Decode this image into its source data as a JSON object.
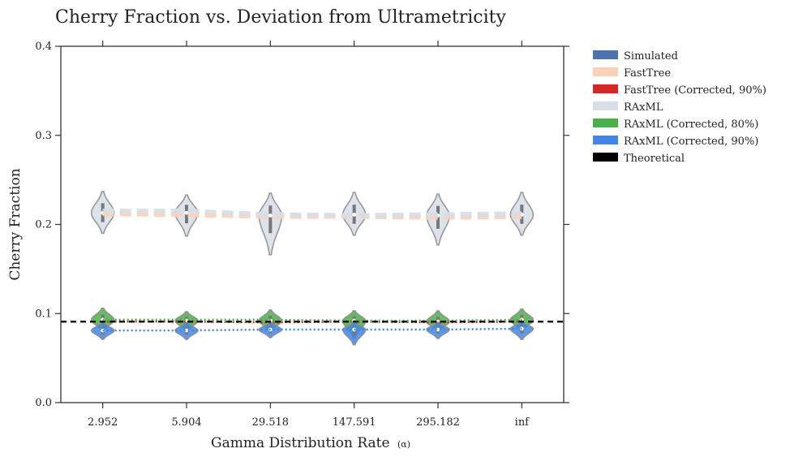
{
  "chart_data": {
    "type": "violin",
    "title": "Cherry Fraction vs. Deviation from Ultrametricity",
    "xlabel": "Gamma Distribution Rate",
    "xlabel_symbol": "(α)",
    "ylabel": "Cherry Fraction",
    "categories": [
      "2.952",
      "5.904",
      "29.518",
      "147.591",
      "295.182",
      "inf"
    ],
    "ylim": [
      0.0,
      0.4
    ],
    "yticks": [
      0.0,
      0.1,
      0.2,
      0.3,
      0.4
    ],
    "ytick_labels": [
      "0.0",
      "0.1",
      "0.2",
      "0.3",
      "0.4"
    ],
    "grid": false,
    "legend_position": "outside-right-top",
    "series": [
      {
        "name": "Simulated",
        "color": "#4c72b0",
        "linestyle": "none",
        "values": []
      },
      {
        "name": "FastTree",
        "color": "#fdd0b8",
        "linestyle": "dashed-thick",
        "values": [
          0.212,
          0.211,
          0.209,
          0.209,
          0.208,
          0.209
        ]
      },
      {
        "name": "FastTree (Corrected, 90%)",
        "color": "#d62728",
        "linestyle": "dotted",
        "values": [
          0.091,
          0.091,
          0.09,
          0.091,
          0.09,
          0.091
        ]
      },
      {
        "name": "RAxML",
        "color": "#d7dee6",
        "linestyle": "dashed-thick",
        "values": [
          0.215,
          0.215,
          0.211,
          0.21,
          0.211,
          0.212
        ]
      },
      {
        "name": "RAxML (Corrected, 80%)",
        "color": "#4daf4a",
        "linestyle": "dotted",
        "values": [
          0.093,
          0.093,
          0.093,
          0.092,
          0.092,
          0.093
        ]
      },
      {
        "name": "RAxML (Corrected, 90%)",
        "color": "#3f86e8",
        "linestyle": "dotted",
        "values": [
          0.081,
          0.081,
          0.082,
          0.082,
          0.082,
          0.083
        ]
      },
      {
        "name": "Theoretical",
        "color": "#000000",
        "linestyle": "dashed",
        "values": [
          0.0909
        ]
      }
    ],
    "violins": [
      {
        "series": "RAxML",
        "color": "#d7dee6",
        "centers": [
          0.213,
          0.213,
          0.21,
          0.211,
          0.21,
          0.211
        ],
        "mins": [
          0.19,
          0.187,
          0.166,
          0.188,
          0.177,
          0.188
        ],
        "maxs": [
          0.237,
          0.233,
          0.235,
          0.236,
          0.234,
          0.236
        ]
      },
      {
        "series": "RAxML (Corrected, 80%)",
        "color": "#4daf4a",
        "centers": [
          0.093,
          0.092,
          0.092,
          0.092,
          0.091,
          0.093
        ],
        "mins": [
          0.08,
          0.08,
          0.08,
          0.072,
          0.08,
          0.08
        ],
        "maxs": [
          0.106,
          0.102,
          0.104,
          0.103,
          0.103,
          0.105
        ]
      },
      {
        "series": "RAxML (Corrected, 90%)",
        "color": "#3f86e8",
        "centers": [
          0.081,
          0.081,
          0.082,
          0.082,
          0.082,
          0.083
        ],
        "mins": [
          0.071,
          0.071,
          0.073,
          0.065,
          0.072,
          0.071
        ],
        "maxs": [
          0.09,
          0.09,
          0.09,
          0.09,
          0.09,
          0.091
        ]
      }
    ]
  }
}
